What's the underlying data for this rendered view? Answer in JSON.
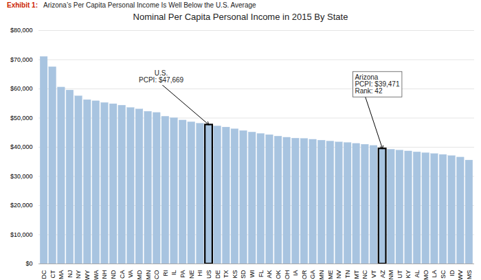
{
  "chart_data": {
    "type": "bar",
    "title": "Nominal Per Capita Personal Income in 2015 By State",
    "exhibit_label": "Exhibit 1:",
    "exhibit_text": "Arizona’s Per Capita Personal Income Is Well Below the U.S. Average",
    "categories": [
      "DC",
      "CT",
      "MA",
      "NJ",
      "NY",
      "WY",
      "WA",
      "NH",
      "ND",
      "CA",
      "VA",
      "MD",
      "MN",
      "CO",
      "RI",
      "IL",
      "PA",
      "NE",
      "HI",
      "US",
      "DE",
      "TX",
      "KS",
      "SD",
      "WI",
      "FL",
      "AK",
      "OK",
      "OH",
      "IA",
      "OR",
      "GA",
      "MN",
      "ME",
      "NV",
      "TN",
      "MT",
      "NC",
      "VT",
      "AZ",
      "NM",
      "UT",
      "KY",
      "AL",
      "MO",
      "LA",
      "SC",
      "ID",
      "WV",
      "MS"
    ],
    "values": [
      71000,
      67500,
      60500,
      59500,
      57500,
      56200,
      55800,
      55200,
      54800,
      54300,
      53500,
      53000,
      52200,
      51800,
      50500,
      50000,
      49200,
      48600,
      48100,
      47669,
      47200,
      46800,
      46200,
      45600,
      45100,
      44600,
      44200,
      43700,
      43300,
      43000,
      42900,
      42600,
      42300,
      42000,
      41700,
      41500,
      41200,
      40900,
      40500,
      39471,
      39200,
      38900,
      38600,
      38300,
      38000,
      37700,
      37400,
      37000,
      36500,
      35500
    ],
    "color": "#a8c4e0",
    "ylim": [
      0,
      80000
    ],
    "yticks": [
      {
        "value": 0,
        "label": "$0"
      },
      {
        "value": 10000,
        "label": "$10,000"
      },
      {
        "value": 20000,
        "label": "$20,000"
      },
      {
        "value": 30000,
        "label": "$30,000"
      },
      {
        "value": 40000,
        "label": "$40,000"
      },
      {
        "value": 50000,
        "label": "$50,000"
      },
      {
        "value": 60000,
        "label": "$60,000"
      },
      {
        "value": 70000,
        "label": "$70,000"
      },
      {
        "value": 80000,
        "label": "$80,000"
      }
    ],
    "grid": true,
    "annotations": [
      {
        "text": "U.S.\nPCPI: $47,669",
        "category": "US",
        "value": 47669
      },
      {
        "text": "Arizona\nPCPI: $39,471\nRank: 42",
        "category": "AZ",
        "value": 39471
      }
    ]
  }
}
